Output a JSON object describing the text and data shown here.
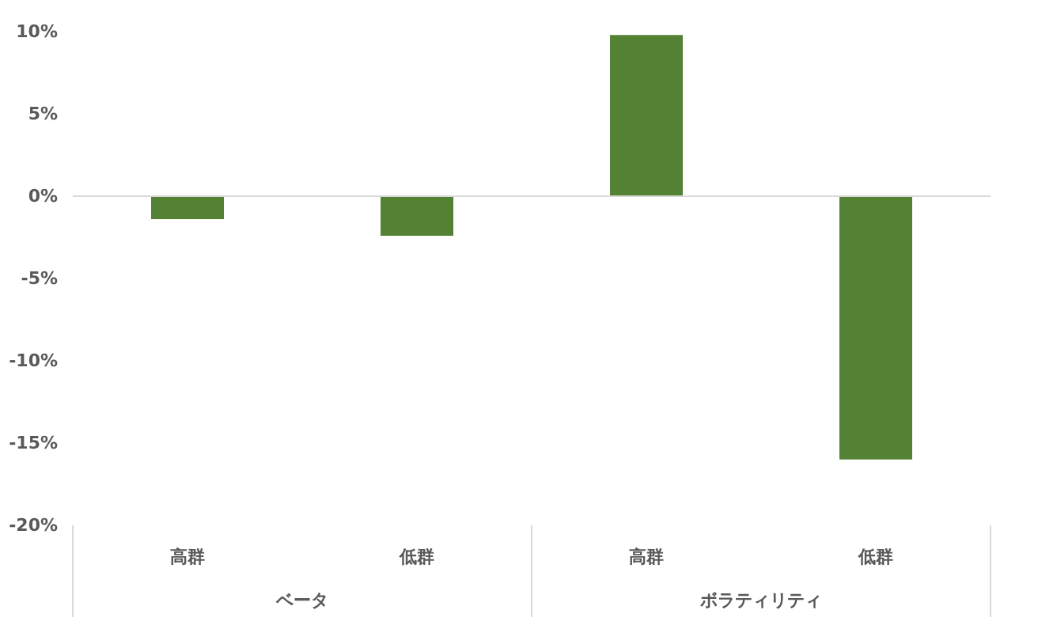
{
  "chart_data": {
    "type": "bar",
    "categories": [
      "高群",
      "低群",
      "高群",
      "低群"
    ],
    "annotations": [
      "ベータ",
      "ボラティリティ"
    ],
    "values": [
      -1.4,
      -2.4,
      9.8,
      -16.0
    ],
    "color": "#548235",
    "ylim": [
      -20,
      10
    ],
    "yticks": [
      {
        "value": -20,
        "label": "-20%"
      },
      {
        "value": -15,
        "label": "-15%"
      },
      {
        "value": -10,
        "label": "-10%"
      },
      {
        "value": -5,
        "label": "-5%"
      },
      {
        "value": 0,
        "label": "0%"
      },
      {
        "value": 5,
        "label": "5%"
      },
      {
        "value": 10,
        "label": "10%"
      }
    ],
    "ref_lines": [
      {
        "axis": "y",
        "value": 0,
        "color": "#d9d9d9"
      }
    ],
    "grid": false
  }
}
